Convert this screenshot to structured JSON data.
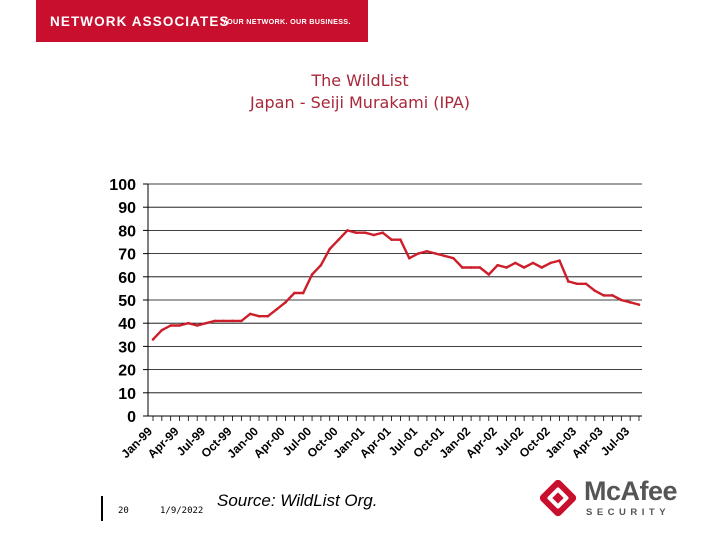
{
  "header": {
    "brand": "NETWORK ASSOCIATES",
    "tagline": "YOUR NETWORK. OUR BUSINESS."
  },
  "chart_data": {
    "type": "line",
    "title": "The WildList",
    "subtitle": "Japan - Seiji Murakami (IPA)",
    "xlabel": "",
    "ylabel": "",
    "ylim": [
      0,
      100
    ],
    "yticks": [
      0,
      10,
      20,
      30,
      40,
      50,
      60,
      70,
      80,
      90,
      100
    ],
    "grid": true,
    "legend": "none",
    "x_tick_labels": [
      "Jan-99",
      "Apr-99",
      "Jul-99",
      "Oct-99",
      "Jan-00",
      "Apr-00",
      "Jul-00",
      "Oct-00",
      "Jan-01",
      "Apr-01",
      "Jul-01",
      "Oct-01",
      "Jan-02",
      "Apr-02",
      "Jul-02",
      "Oct-02",
      "Jan-03",
      "Apr-03",
      "Jul-03"
    ],
    "x": [
      "1999-01",
      "1999-02",
      "1999-03",
      "1999-04",
      "1999-05",
      "1999-06",
      "1999-07",
      "1999-08",
      "1999-09",
      "1999-10",
      "1999-11",
      "1999-12",
      "2000-01",
      "2000-02",
      "2000-03",
      "2000-04",
      "2000-05",
      "2000-06",
      "2000-07",
      "2000-08",
      "2000-09",
      "2000-10",
      "2000-11",
      "2000-12",
      "2001-01",
      "2001-02",
      "2001-03",
      "2001-04",
      "2001-05",
      "2001-06",
      "2001-07",
      "2001-08",
      "2001-09",
      "2001-10",
      "2001-11",
      "2001-12",
      "2002-01",
      "2002-02",
      "2002-03",
      "2002-04",
      "2002-05",
      "2002-06",
      "2002-07",
      "2002-08",
      "2002-09",
      "2002-10",
      "2002-11",
      "2002-12",
      "2003-01",
      "2003-02",
      "2003-03",
      "2003-04",
      "2003-05",
      "2003-06",
      "2003-07",
      "2003-08"
    ],
    "series": [
      {
        "color": "#cc1f2b",
        "values": [
          33,
          37,
          39,
          39,
          40,
          39,
          40,
          41,
          41,
          41,
          41,
          44,
          43,
          43,
          46,
          49,
          53,
          53,
          61,
          65,
          72,
          76,
          80,
          79,
          79,
          78,
          79,
          76,
          76,
          68,
          70,
          71,
          70,
          69,
          68,
          64,
          64,
          64,
          61,
          65,
          64,
          66,
          64,
          66,
          64,
          66,
          67,
          58,
          57,
          57,
          54,
          52,
          52,
          50,
          49,
          48
        ]
      }
    ]
  },
  "footer": {
    "page_number": "20",
    "date": "1/9/2022",
    "source": "Source: WildList Org."
  },
  "logo": {
    "name": "McAfee",
    "subtitle": "SECURITY",
    "color": "#c8102e"
  }
}
